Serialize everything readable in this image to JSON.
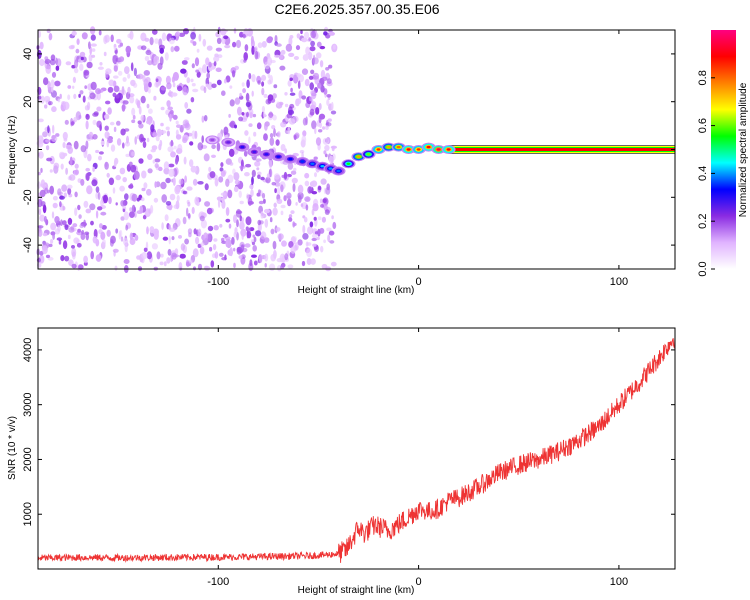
{
  "title": "C2E6.2025.357.00.35.E06",
  "chart_data": [
    {
      "type": "heatmap",
      "xlabel": "Height of straight line (km)",
      "ylabel": "Frequency (Hz)",
      "xlim": [
        -190,
        128
      ],
      "ylim": [
        -50,
        50
      ],
      "xticks": [
        -100,
        0,
        100
      ],
      "yticks": [
        -40,
        -20,
        0,
        20,
        40
      ],
      "noise_region_x": [
        -190,
        -42
      ],
      "signal_trace": {
        "x": [
          -103,
          -95,
          -88,
          -82,
          -76,
          -70,
          -64,
          -58,
          -53,
          -48,
          -44,
          -40,
          -35,
          -30,
          -25,
          -20,
          -15,
          -10,
          -5,
          0,
          5,
          10,
          15
        ],
        "y": [
          4,
          3,
          1,
          -1,
          -2,
          -3,
          -4,
          -5,
          -6,
          -7,
          -8,
          -9,
          -6,
          -3,
          -2,
          0,
          1,
          1,
          0,
          0,
          1,
          0,
          0
        ],
        "amplitude": [
          0.2,
          0.25,
          0.3,
          0.28,
          0.3,
          0.32,
          0.33,
          0.35,
          0.38,
          0.42,
          0.4,
          0.38,
          0.55,
          0.75,
          0.6,
          0.85,
          0.75,
          0.8,
          0.9,
          0.85,
          0.9,
          0.95,
          0.9
        ]
      },
      "carrier_line": {
        "x_start": 15,
        "x_end": 128,
        "y": 0,
        "amplitude": 1.0
      },
      "colorbar": {
        "label": "Normalized spectral amplitude",
        "range": [
          0,
          1
        ],
        "ticks": [
          0.0,
          0.2,
          0.4,
          0.6,
          0.8
        ],
        "colormap": [
          "#ffffff",
          "#e0b3ff",
          "#8a2be2",
          "#0000ff",
          "#00ffff",
          "#00ff00",
          "#ffff00",
          "#ff8000",
          "#ff0000",
          "#ff0080"
        ]
      }
    },
    {
      "type": "line",
      "xlabel": "Height of straight line (km)",
      "ylabel": "SNR (10 * v/v)",
      "xlim": [
        -190,
        128
      ],
      "ylim": [
        0,
        4400
      ],
      "xticks": [
        -100,
        0,
        100
      ],
      "yticks": [
        1000,
        2000,
        3000,
        4000
      ],
      "color": "#ee3333",
      "series": {
        "x": [
          -190,
          -170,
          -150,
          -130,
          -110,
          -90,
          -70,
          -55,
          -45,
          -40,
          -36,
          -33,
          -30,
          -27,
          -22,
          -15,
          -10,
          -5,
          0,
          5,
          10,
          15,
          20,
          30,
          40,
          50,
          60,
          70,
          80,
          90,
          100,
          110,
          120,
          128
        ],
        "y": [
          200,
          210,
          205,
          210,
          215,
          220,
          230,
          240,
          260,
          280,
          350,
          550,
          750,
          650,
          800,
          700,
          820,
          950,
          1100,
          1050,
          1100,
          1250,
          1300,
          1500,
          1750,
          1900,
          2000,
          2150,
          2350,
          2600,
          3000,
          3400,
          3850,
          4250
        ]
      },
      "noise_amplitude": 180
    }
  ]
}
